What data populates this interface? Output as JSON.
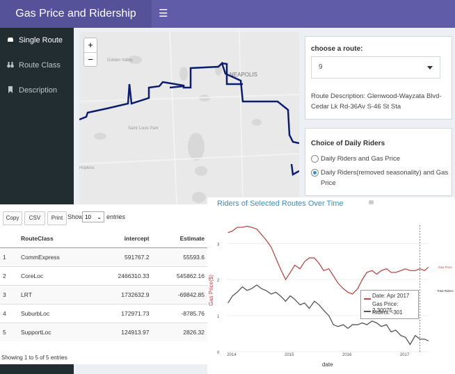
{
  "header": {
    "title": "Gas Price and Ridership",
    "menu_icon": "☰"
  },
  "sidebar": {
    "items": [
      {
        "label": "Single Route",
        "icon": "car-icon"
      },
      {
        "label": "Route Class",
        "icon": "binoculars-icon"
      },
      {
        "label": "Description",
        "icon": "bookmark-icon"
      }
    ]
  },
  "map": {
    "zoom_in": "+",
    "zoom_out": "−",
    "labels": [
      "Golden Valley",
      "NEAPOLIS",
      "Saint Louis Park",
      "Hopkins"
    ],
    "route_color": "#0c1d6e"
  },
  "route_box": {
    "label": "choose a route:",
    "selected": "9",
    "description": "Route Description: Glenwood-Wayzata Blvd-Cedar Lk Rd-36Av S-46 St Sta"
  },
  "riders_box": {
    "title": "Choice of Daily Riders",
    "options": [
      {
        "label": "Daily Riders and Gas Price",
        "selected": false
      },
      {
        "label": "Daily Riders(removed seasonality) and Gas Price",
        "selected": true
      }
    ]
  },
  "table": {
    "buttons": [
      "Copy",
      "CSV",
      "Print"
    ],
    "show": "Show",
    "entries_value": "10",
    "entries": "entries",
    "columns": [
      "",
      "RouteClass",
      "intercept",
      "Estimate"
    ],
    "rows": [
      [
        "1",
        "CommExpress",
        "591767.2",
        "55593.6"
      ],
      [
        "2",
        "CoreLoc",
        "2466310.33",
        "545862.16"
      ],
      [
        "3",
        "LRT",
        "1732632.9",
        "-69842.85"
      ],
      [
        "4",
        "SuburbLoc",
        "172971.73",
        "-8785.76"
      ],
      [
        "5",
        "SupportLoc",
        "124913.97",
        "2826.32"
      ]
    ],
    "footer": "Showing 1 to 5 of 5 entries"
  },
  "chart_data": {
    "type": "line",
    "title": "Riders of Selected Routes Over Time",
    "xlabel": "date",
    "ylabel": "Gas Price($)",
    "x_ticks": [
      "2014",
      "2015",
      "2016",
      "2017"
    ],
    "y_ticks": [
      "0",
      "1",
      "2",
      "3"
    ],
    "xlim": [
      2013.9,
      2017.4
    ],
    "ylim": [
      0,
      3.7
    ],
    "series": [
      {
        "name": "Gas Price",
        "color": "#b94a48",
        "x": [
          2013.92,
          2014.0,
          2014.08,
          2014.17,
          2014.25,
          2014.33,
          2014.42,
          2014.5,
          2014.58,
          2014.67,
          2014.75,
          2014.83,
          2014.92,
          2015.0,
          2015.08,
          2015.17,
          2015.25,
          2015.33,
          2015.42,
          2015.5,
          2015.58,
          2015.67,
          2015.75,
          2015.83,
          2015.92,
          2016.0,
          2016.08,
          2016.17,
          2016.25,
          2016.33,
          2016.42,
          2016.5,
          2016.58,
          2016.67,
          2016.75,
          2016.83,
          2016.92,
          2017.0,
          2017.08,
          2017.17,
          2017.25,
          2017.33,
          2017.4
        ],
        "y": [
          3.3,
          3.35,
          3.45,
          3.45,
          3.48,
          3.45,
          3.4,
          3.25,
          3.1,
          2.9,
          2.6,
          2.3,
          2.0,
          2.2,
          2.4,
          2.3,
          2.5,
          2.6,
          2.6,
          2.45,
          2.25,
          2.3,
          2.1,
          1.9,
          1.75,
          1.65,
          1.6,
          1.75,
          2.0,
          2.2,
          2.25,
          2.15,
          2.25,
          2.3,
          2.2,
          2.2,
          2.25,
          2.3,
          2.25,
          2.25,
          2.3,
          2.25,
          2.35
        ]
      },
      {
        "name": "Total Riders",
        "color": "#555555",
        "x": [
          2013.92,
          2014.0,
          2014.08,
          2014.17,
          2014.25,
          2014.33,
          2014.42,
          2014.5,
          2014.58,
          2014.67,
          2014.75,
          2014.83,
          2014.92,
          2015.0,
          2015.08,
          2015.17,
          2015.25,
          2015.33,
          2015.42,
          2015.5,
          2015.58,
          2015.67,
          2015.75,
          2015.83,
          2015.92,
          2016.0,
          2016.08,
          2016.17,
          2016.25,
          2016.33,
          2016.42,
          2016.5,
          2016.58,
          2016.67,
          2016.75,
          2016.83,
          2016.92,
          2017.0,
          2017.08,
          2017.17,
          2017.25,
          2017.33,
          2017.4
        ],
        "y": [
          1.35,
          1.55,
          1.65,
          1.8,
          1.7,
          1.75,
          1.85,
          1.75,
          1.7,
          1.6,
          1.65,
          1.55,
          1.4,
          1.55,
          1.45,
          1.3,
          1.35,
          1.2,
          1.4,
          1.3,
          1.15,
          1.0,
          0.75,
          0.7,
          0.75,
          0.65,
          0.75,
          0.75,
          0.8,
          0.75,
          0.85,
          0.8,
          0.7,
          0.75,
          0.55,
          0.6,
          0.45,
          0.4,
          0.2,
          0.45,
          0.35,
          0.35,
          0.3
        ]
      }
    ],
    "marker_x": 2017.25,
    "tooltip": {
      "date": "Date: Apr 2017",
      "gas": "Gas Price: 2.30075",
      "riders": "Riders: -301"
    },
    "end_labels": [
      "Gas Price",
      "Total Riders"
    ]
  }
}
